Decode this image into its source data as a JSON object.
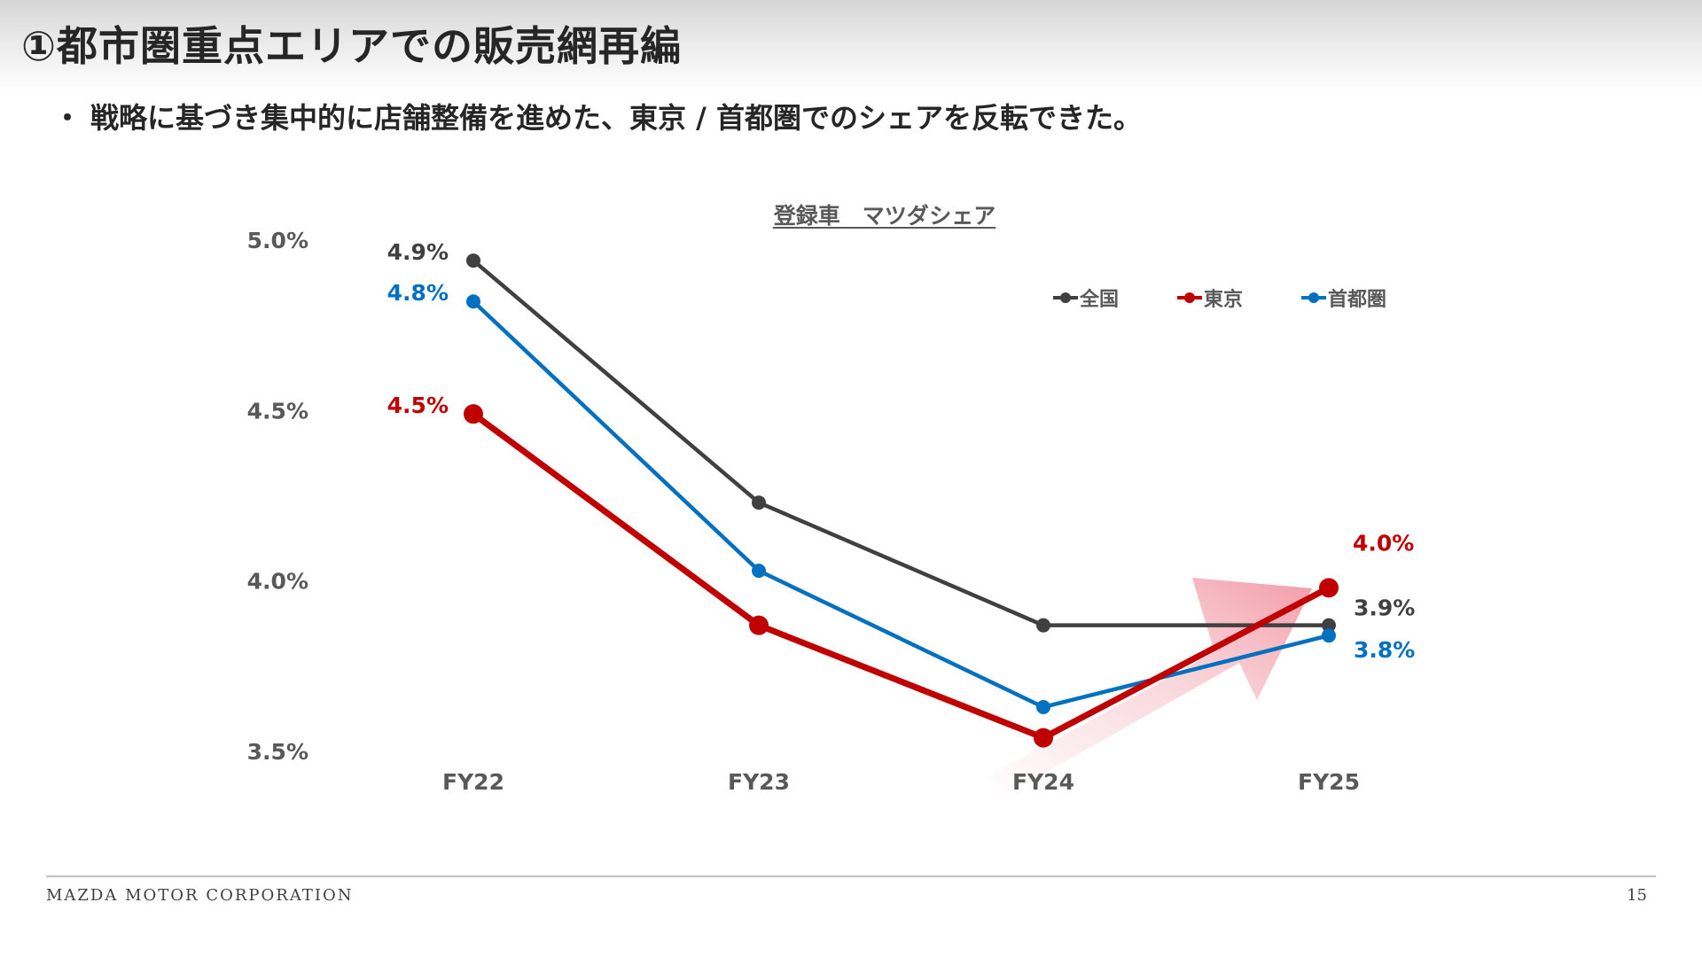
{
  "header": {
    "title": "①都市圏重点エリアでの販売網再編"
  },
  "bullet": {
    "dot": "・",
    "text": "戦略に基づき集中的に店舗整備を進めた、東京 / 首都圏でのシェアを反転できた。"
  },
  "chart_data": {
    "type": "line",
    "title": "登録車　マツダシェア",
    "categories": [
      "FY22",
      "FY23",
      "FY24",
      "FY25"
    ],
    "ylim": [
      3.5,
      5.0
    ],
    "y_ticks": [
      "3.5%",
      "4.0%",
      "4.5%",
      "5.0%"
    ],
    "y_tick_values": [
      3.5,
      4.0,
      4.5,
      5.0
    ],
    "legend_position": "top-right",
    "grid": false,
    "series": [
      {
        "name": "全国",
        "color": "#404040",
        "values": [
          4.94,
          4.23,
          3.87,
          3.87
        ],
        "labels": [
          "4.9%",
          null,
          null,
          "3.9%"
        ],
        "width": "thin"
      },
      {
        "name": "東京",
        "color": "#c00000",
        "values": [
          4.49,
          3.87,
          3.54,
          3.98
        ],
        "labels": [
          "4.5%",
          null,
          null,
          "4.0%"
        ],
        "width": "thick"
      },
      {
        "name": "首都圏",
        "color": "#0070c0",
        "values": [
          4.82,
          4.03,
          3.63,
          3.84
        ],
        "labels": [
          "4.8%",
          null,
          null,
          "3.8%"
        ],
        "width": "thin"
      }
    ],
    "annotation": "upward-trend-arrow"
  },
  "footer": {
    "company": "MAZDA MOTOR CORPORATION",
    "page_number": "15"
  }
}
